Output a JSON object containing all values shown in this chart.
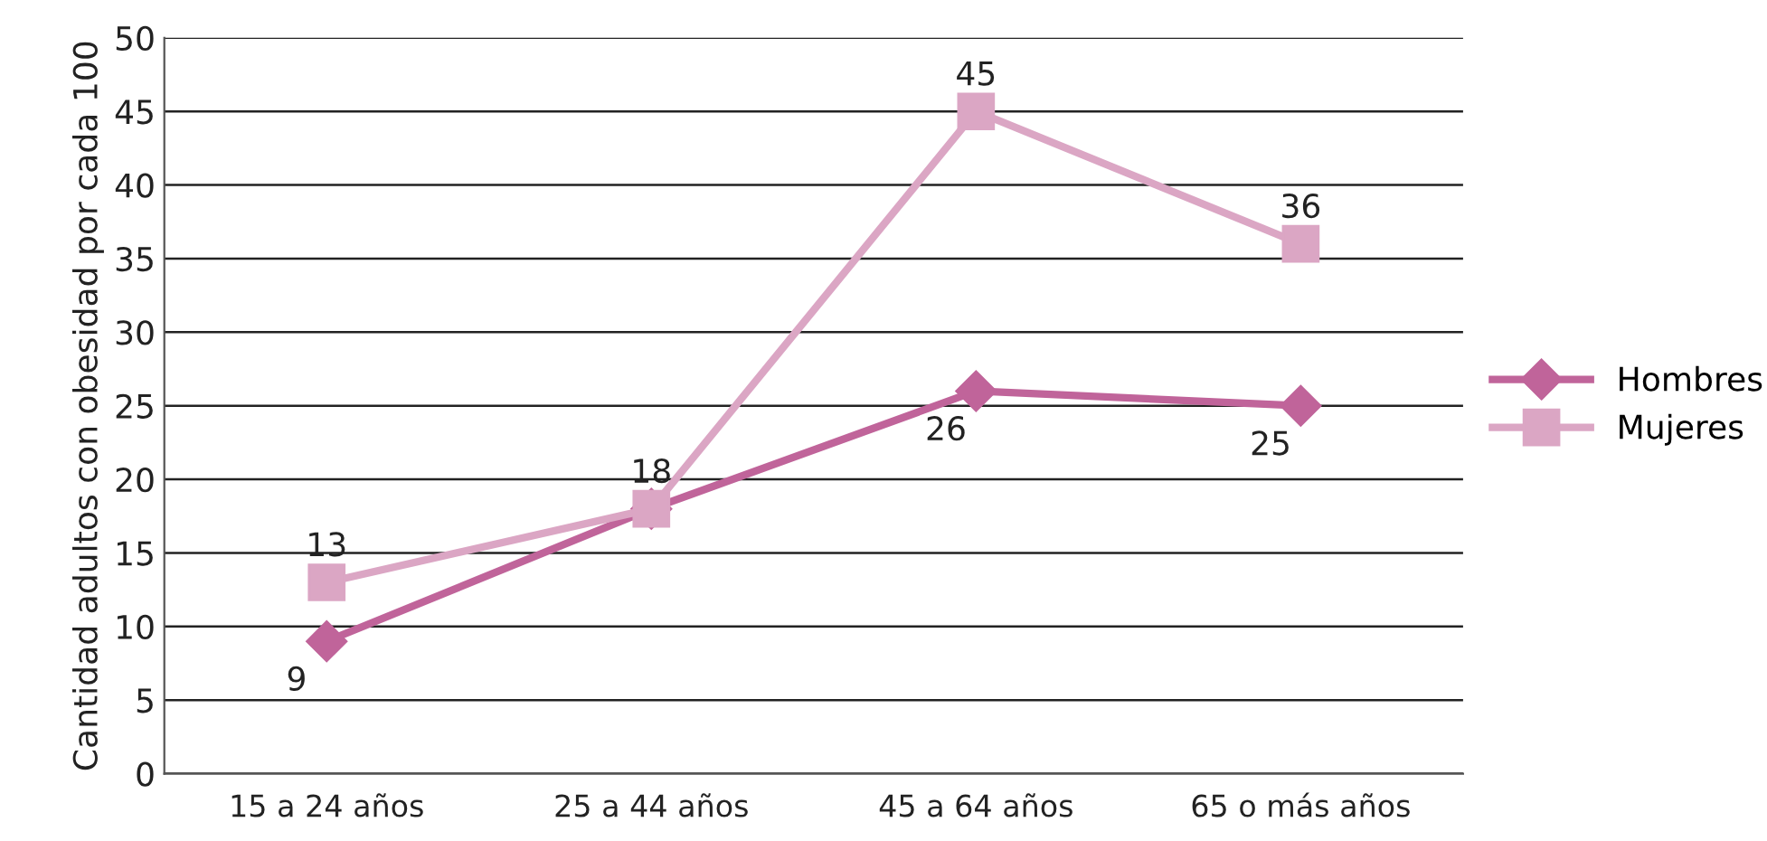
{
  "chart_data": {
    "type": "line",
    "ylabel": "Cantidad adultos con obesidad por cada 100",
    "categories": [
      "15 a 24 años",
      "25 a 44 años",
      "45 a 64 años",
      "65 o más años"
    ],
    "series": [
      {
        "name": "Hombres",
        "color": "#c0649a",
        "marker": "diamond",
        "values": [
          9,
          18,
          26,
          25
        ],
        "value_labels": [
          "9",
          null,
          "26",
          "25"
        ]
      },
      {
        "name": "Mujeres",
        "color": "#dba6c4",
        "marker": "square",
        "values": [
          13,
          18,
          45,
          36
        ],
        "value_labels": [
          "13",
          "18",
          "45",
          "36"
        ]
      }
    ],
    "ylim": [
      0,
      50
    ],
    "yticks": [
      0,
      5,
      10,
      15,
      20,
      25,
      30,
      35,
      40,
      45,
      50
    ],
    "grid": "y",
    "legend": "right",
    "line_style": "solid"
  }
}
